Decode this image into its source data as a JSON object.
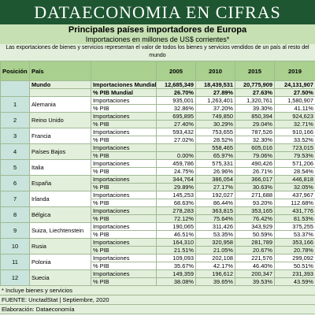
{
  "header": {
    "banner": "DATAECONOMIA EN CIFRAS",
    "title": "Principales países importadores de Europa",
    "subtitle": "Importaciones en millones de US$ corrientes*",
    "note": "Las exportaciones de bienes y servicios representan el valor de todos los bienes y servicios vendidos de un país al resto del mundo"
  },
  "table": {
    "columns": [
      "Posición 2019",
      "País",
      "2005",
      "2010",
      "2015",
      "2019"
    ],
    "rows": [
      {
        "position": null,
        "country": "Mundo",
        "lines": [
          {
            "label": "Importaciones Mundiales",
            "values": [
              "12,685,349",
              "18,439,531",
              "20,775,909",
              "24,131,907"
            ]
          },
          {
            "label": "% PIB Mundial",
            "values": [
              "26.70%",
              "27.89%",
              "27.63%",
              "27.50%"
            ]
          }
        ]
      },
      {
        "position": "1",
        "country": "Alemania",
        "lines": [
          {
            "label": "Importaciones",
            "values": [
              "935,001",
              "1,263,401",
              "1,320,761",
              "1,580,907"
            ]
          },
          {
            "label": "% PIB",
            "values": [
              "32.86%",
              "37.20%",
              "39.30%",
              "41.11%"
            ]
          }
        ]
      },
      {
        "position": "2",
        "country": "Reino Unido",
        "lines": [
          {
            "label": "Importaciones",
            "values": [
              "695,895",
              "749,850",
              "850,394",
              "924,623"
            ]
          },
          {
            "label": "% PIB",
            "values": [
              "27.40%",
              "30.29%",
              "29.04%",
              "32.71%"
            ]
          }
        ]
      },
      {
        "position": "3",
        "country": "Francia",
        "lines": [
          {
            "label": "Importaciones",
            "values": [
              "593,432",
              "753,655",
              "787,526",
              "910,166"
            ]
          },
          {
            "label": "% PIB",
            "values": [
              "27.02%",
              "28.52%",
              "32.30%",
              "33.52%"
            ]
          }
        ]
      },
      {
        "position": "4",
        "country": "Países Bajos",
        "lines": [
          {
            "label": "Importaciones",
            "values": [
              null,
              "558,465",
              "605,016",
              "723,015"
            ]
          },
          {
            "label": "% PIB",
            "values": [
              "0.00%",
              "65.97%",
              "79.06%",
              "79.53%"
            ]
          }
        ]
      },
      {
        "position": "5",
        "country": "Italia",
        "lines": [
          {
            "label": "Importaciones",
            "values": [
              "459,786",
              "575,331",
              "490,426",
              "571,206"
            ]
          },
          {
            "label": "% PIB",
            "values": [
              "24.75%",
              "26.96%",
              "26.71%",
              "28.54%"
            ]
          }
        ]
      },
      {
        "position": "6",
        "country": "España",
        "lines": [
          {
            "label": "Importaciones",
            "values": [
              "344,764",
              "386,054",
              "366,017",
              "446,818"
            ]
          },
          {
            "label": "% PIB",
            "values": [
              "29.89%",
              "27.17%",
              "30.63%",
              "32.05%"
            ]
          }
        ]
      },
      {
        "position": "7",
        "country": "Irlanda",
        "lines": [
          {
            "label": "Importaciones",
            "values": [
              "145,253",
              "192,027",
              "271,688",
              "437,967"
            ]
          },
          {
            "label": "% PIB",
            "values": [
              "68.63%",
              "86.44%",
              "93.20%",
              "112.68%"
            ]
          }
        ]
      },
      {
        "position": "8",
        "country": "Bélgica",
        "lines": [
          {
            "label": "Importaciones",
            "values": [
              "278,283",
              "363,815",
              "353,165",
              "431,776"
            ]
          },
          {
            "label": "% PIB",
            "values": [
              "72.12%",
              "75.64%",
              "76.42%",
              "81.53%"
            ]
          }
        ]
      },
      {
        "position": "9",
        "country": "Suiza, Liechtenstein",
        "lines": [
          {
            "label": "Importaciones",
            "values": [
              "190,065",
              "311,426",
              "343,929",
              "375,255"
            ]
          },
          {
            "label": "% PIB",
            "values": [
              "46.51%",
              "53.35%",
              "50.59%",
              "53.37%"
            ]
          }
        ]
      },
      {
        "position": "10",
        "country": "Rusia",
        "lines": [
          {
            "label": "Importaciones",
            "values": [
              "164,310",
              "320,958",
              "281,789",
              "353,166"
            ]
          },
          {
            "label": "% PIB",
            "values": [
              "21.51%",
              "21.05%",
              "20.67%",
              "20.78%"
            ]
          }
        ]
      },
      {
        "position": "11",
        "country": "Polonia",
        "lines": [
          {
            "label": "Importaciones",
            "values": [
              "109,093",
              "202,108",
              "221,576",
              "299,092"
            ]
          },
          {
            "label": "% PIB",
            "values": [
              "35.67%",
              "42.17%",
              "46.40%",
              "50.51%"
            ]
          }
        ]
      },
      {
        "position": "12",
        "country": "Suecia",
        "lines": [
          {
            "label": "Importaciones",
            "values": [
              "149,359",
              "196,612",
              "200,347",
              "231,393"
            ]
          },
          {
            "label": "% PIB",
            "values": [
              "38.08%",
              "39.65%",
              "39.53%",
              "43.59%"
            ]
          }
        ]
      }
    ]
  },
  "footer": {
    "footnote": "* Incluye bienes y servicios",
    "source": "FUENTE: UnctadStat | Septiembre, 2020",
    "credit": "Elaboración: Dataeconomía"
  }
}
